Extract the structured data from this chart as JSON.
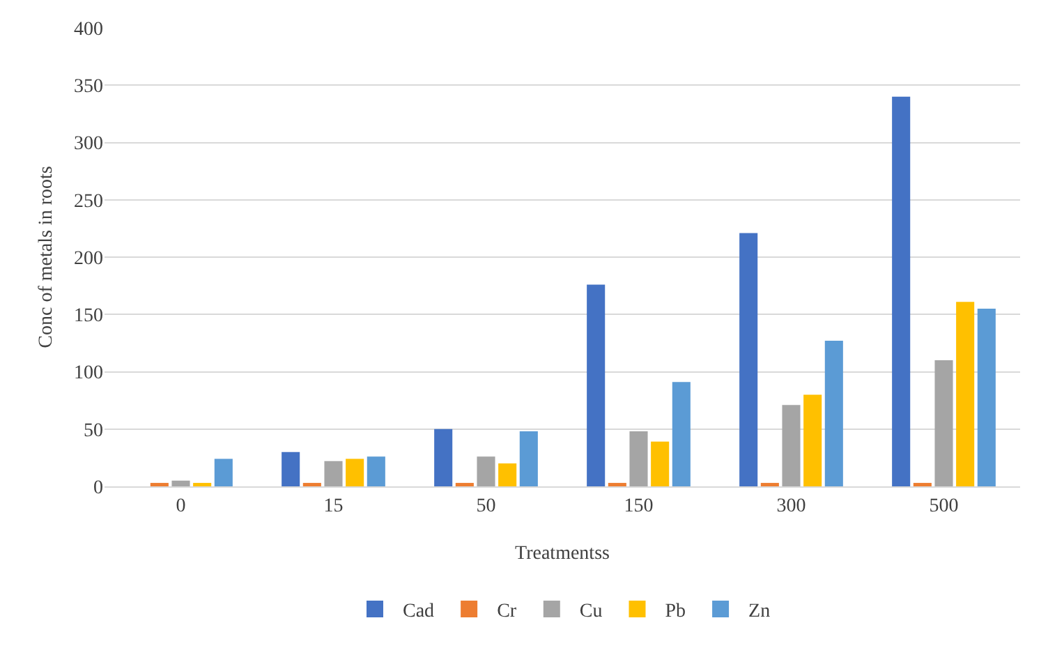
{
  "chart_data": {
    "type": "bar",
    "xlabel": "Treatmentss",
    "ylabel": "Conc of metals in roots",
    "categories": [
      "0",
      "15",
      "50",
      "150",
      "300",
      "500"
    ],
    "series": [
      {
        "name": "Cad",
        "color": "#4472c4",
        "values": [
          0,
          30,
          50,
          176,
          221,
          340
        ]
      },
      {
        "name": "Cr",
        "color": "#ed7d31",
        "values": [
          3,
          3,
          3,
          3,
          3,
          3
        ]
      },
      {
        "name": "Cu",
        "color": "#a5a5a5",
        "values": [
          5,
          22,
          26,
          48,
          71,
          110
        ]
      },
      {
        "name": "Pb",
        "color": "#ffc000",
        "values": [
          3,
          24,
          20,
          39,
          80,
          161
        ]
      },
      {
        "name": "Zn",
        "color": "#5b9bd5",
        "values": [
          24,
          26,
          48,
          91,
          127,
          155
        ]
      }
    ],
    "ylim": [
      0,
      400
    ],
    "yticks": [
      0,
      50,
      100,
      150,
      200,
      250,
      300,
      350,
      400
    ],
    "grid": "y",
    "legend": "bottom"
  }
}
